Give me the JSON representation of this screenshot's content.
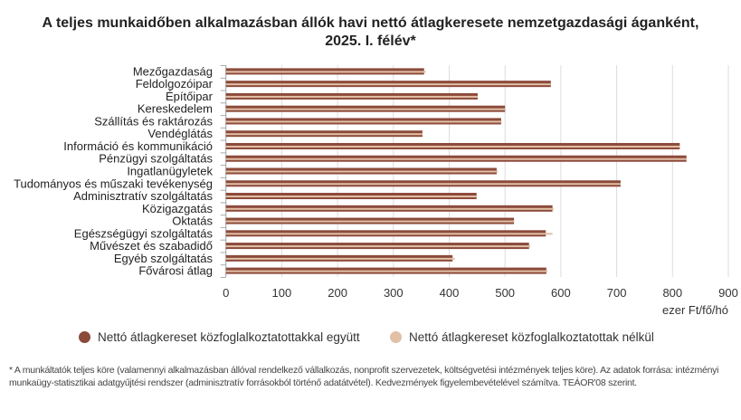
{
  "title_line1": "A teljes munkaidőben alkalmazásban állók havi nettó átlagkeresete nemzetgazdasági áganként,",
  "title_line2": "2025. I. félév*",
  "footnote": "* A munkáltatók teljes köre (valamennyi alkalmazásban állóval rendelkező vállalkozás, nonprofit szervezetek, költségvetési intézmények teljes köre). Az adatok forrása: intézményi munkaügy-statisztikai adatgyűjtési rendszer (adminisztratív forrásokból történő adatátvétel). Kedvezmények figyelembevételével számítva. TEÁOR'08 szerint.",
  "chart_data": {
    "type": "bar",
    "orientation": "horizontal",
    "title": "A teljes munkaidőben alkalmazásban állók havi nettó átlagkeresete nemzetgazdasági áganként, 2025. I. félév*",
    "xlabel": "ezer Ft/fő/hó",
    "xlim": [
      0,
      900
    ],
    "xticks": [
      "0",
      "100",
      "200",
      "300",
      "400",
      "500",
      "600",
      "700",
      "800",
      "900"
    ],
    "grid": true,
    "legend_position": "bottom",
    "categories": [
      "Mezőgazdaság",
      "Feldolgozóipar",
      "Építőipar",
      "Kereskedelem",
      "Szállítás és raktározás",
      "Vendéglátás",
      "Információ és kommunikáció",
      "Pénzügyi szolgáltatás",
      "Ingatlanügyletek",
      "Tudományos és műszaki tevékenység",
      "Adminisztratív szolgáltatás",
      "Közigazgatás",
      "Oktatás",
      "Egészségügyi szolgáltatás",
      "Művészet és szabadidő",
      "Egyéb szolgáltatás",
      "Fővárosi átlag"
    ],
    "series": [
      {
        "name": "Nettó átlagkereset közfoglalkoztatottakkal együtt",
        "color": "#8c4a3b",
        "values": [
          355,
          582,
          451,
          500,
          493,
          352,
          813,
          825,
          485,
          707,
          449,
          585,
          516,
          573,
          543,
          406,
          574
        ]
      },
      {
        "name": "Nettó átlagkereset közfoglalkoztatottak nélkül",
        "color": "#e2c0a6",
        "values": [
          358,
          582,
          451,
          500,
          494,
          352,
          813,
          825,
          487,
          707,
          449,
          587,
          516,
          585,
          545,
          410,
          576
        ]
      }
    ]
  }
}
